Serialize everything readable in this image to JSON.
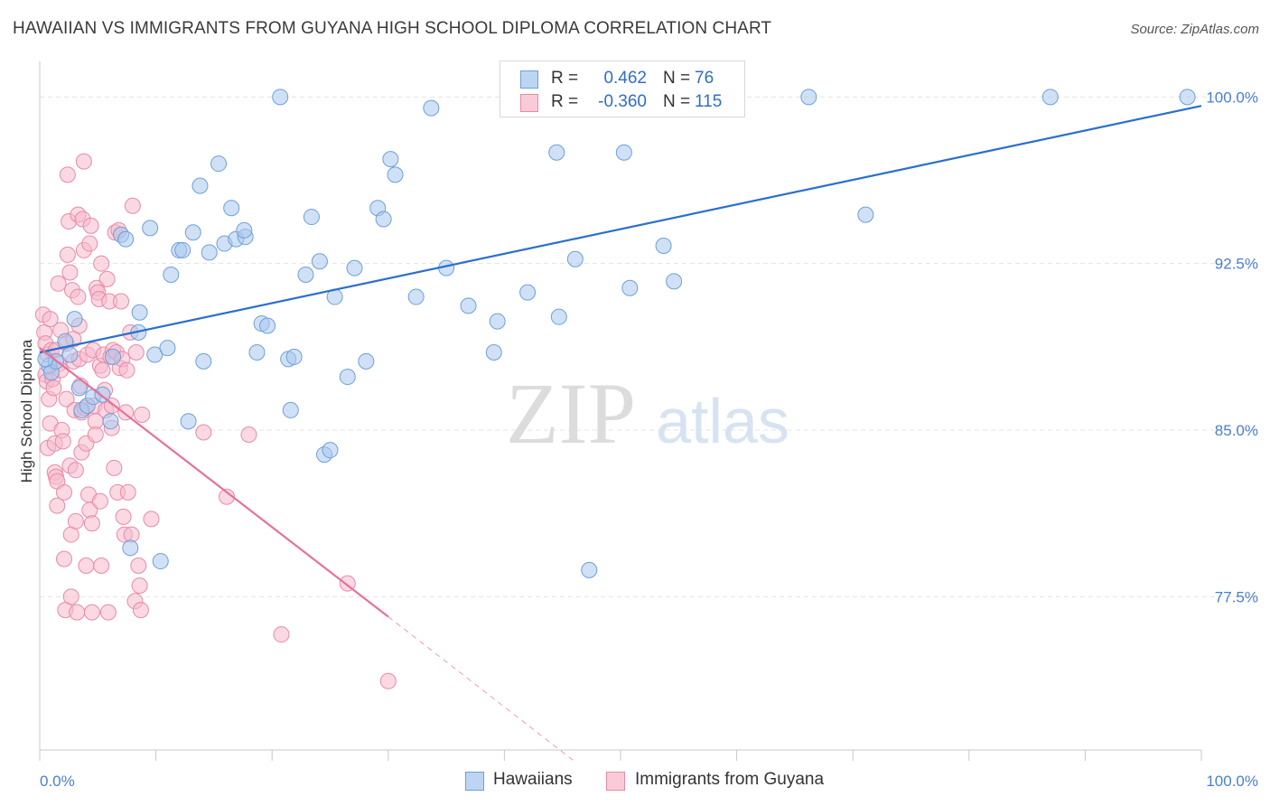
{
  "header": {
    "title": "HAWAIIAN VS IMMIGRANTS FROM GUYANA HIGH SCHOOL DIPLOMA CORRELATION CHART",
    "source": "Source: ZipAtlas.com"
  },
  "watermark": {
    "zip": "ZIP",
    "atlas": "atlas"
  },
  "colors": {
    "blue_fill": "#a9c8ee",
    "blue_stroke": "#6e9fd8",
    "blue_line": "#2a6fcc",
    "pink_fill": "#f5b9cc",
    "pink_stroke": "#e88aa8",
    "pink_line": "#e8709a",
    "axis_text": "#4a7fcf",
    "grid": "#e3e3e3"
  },
  "legend_top": {
    "rows": [
      {
        "r_label": "R =",
        "r_value": "0.462",
        "n_label": "N =",
        "n_value": "76"
      },
      {
        "r_label": "R =",
        "r_value": "-0.360",
        "n_label": "N =",
        "n_value": "115"
      }
    ]
  },
  "legend_bottom": {
    "items": [
      {
        "label": "Hawaiians"
      },
      {
        "label": "Immigrants from Guyana"
      }
    ]
  },
  "chart_data": {
    "type": "scatter",
    "title": "HAWAIIAN VS IMMIGRANTS FROM GUYANA HIGH SCHOOL DIPLOMA CORRELATION CHART",
    "xlabel": "",
    "ylabel": "High School Diploma",
    "xlim": [
      0,
      100
    ],
    "ylim": [
      70.6,
      101.6
    ],
    "x_tick_labels": [
      {
        "value": 0,
        "label": "0.0%"
      },
      {
        "value": 100,
        "label": "100.0%"
      }
    ],
    "y_tick_labels": [
      {
        "value": 100.0,
        "label": "100.0%"
      },
      {
        "value": 92.5,
        "label": "92.5%"
      },
      {
        "value": 85.0,
        "label": "85.0%"
      },
      {
        "value": 77.5,
        "label": "77.5%"
      }
    ],
    "grid": true,
    "legend_position": "top-center",
    "series": [
      {
        "name": "Hawaiians",
        "color": "#a9c8ee",
        "trend": {
          "x": [
            0,
            100
          ],
          "y": [
            88.5,
            99.6
          ],
          "style": "solid"
        },
        "points": [
          [
            0.8,
            87.9
          ],
          [
            1.0,
            87.6
          ],
          [
            1.4,
            88.1
          ],
          [
            2.2,
            89.0
          ],
          [
            2.6,
            88.4
          ],
          [
            3.0,
            90.0
          ],
          [
            3.4,
            86.9
          ],
          [
            3.6,
            85.9
          ],
          [
            4.1,
            86.1
          ],
          [
            4.6,
            86.5
          ],
          [
            5.4,
            86.6
          ],
          [
            6.1,
            85.4
          ],
          [
            6.3,
            88.3
          ],
          [
            7.0,
            93.8
          ],
          [
            7.4,
            93.6
          ],
          [
            7.8,
            79.7
          ],
          [
            8.5,
            89.4
          ],
          [
            8.6,
            90.3
          ],
          [
            9.5,
            94.1
          ],
          [
            9.9,
            88.4
          ],
          [
            10.4,
            79.1
          ],
          [
            11.0,
            88.7
          ],
          [
            11.3,
            92.0
          ],
          [
            12.0,
            93.1
          ],
          [
            12.3,
            93.1
          ],
          [
            12.8,
            85.4
          ],
          [
            13.2,
            93.9
          ],
          [
            13.8,
            96.0
          ],
          [
            14.1,
            88.1
          ],
          [
            14.6,
            93.0
          ],
          [
            15.4,
            97.0
          ],
          [
            15.9,
            93.4
          ],
          [
            16.5,
            95.0
          ],
          [
            16.9,
            93.6
          ],
          [
            17.7,
            93.7
          ],
          [
            17.6,
            94.0
          ],
          [
            18.7,
            88.5
          ],
          [
            19.1,
            89.8
          ],
          [
            19.6,
            89.7
          ],
          [
            20.7,
            100.0
          ],
          [
            21.4,
            88.2
          ],
          [
            21.6,
            85.9
          ],
          [
            21.9,
            88.3
          ],
          [
            22.9,
            92.0
          ],
          [
            23.4,
            94.6
          ],
          [
            24.1,
            92.6
          ],
          [
            24.5,
            83.9
          ],
          [
            25.0,
            84.1
          ],
          [
            25.4,
            91.0
          ],
          [
            26.5,
            87.4
          ],
          [
            27.1,
            92.3
          ],
          [
            28.1,
            88.1
          ],
          [
            29.1,
            95.0
          ],
          [
            29.6,
            94.5
          ],
          [
            30.2,
            97.2
          ],
          [
            30.6,
            96.5
          ],
          [
            32.4,
            91.0
          ],
          [
            33.7,
            99.5
          ],
          [
            35.0,
            92.3
          ],
          [
            36.9,
            90.6
          ],
          [
            39.4,
            89.9
          ],
          [
            39.1,
            88.5
          ],
          [
            42.0,
            91.2
          ],
          [
            44.5,
            97.5
          ],
          [
            44.7,
            90.1
          ],
          [
            46.1,
            92.7
          ],
          [
            47.3,
            78.7
          ],
          [
            50.3,
            97.5
          ],
          [
            50.8,
            91.4
          ],
          [
            53.7,
            93.3
          ],
          [
            54.6,
            91.7
          ],
          [
            66.2,
            100.0
          ],
          [
            71.1,
            94.7
          ],
          [
            87.0,
            100.0
          ],
          [
            98.8,
            100.0
          ],
          [
            0.5,
            88.2
          ]
        ]
      },
      {
        "name": "Immigrants from Guyana",
        "color": "#f5b9cc",
        "trend": {
          "x": [
            0,
            30
          ],
          "y": [
            88.7,
            76.6
          ],
          "style": "solid",
          "dashed_extension_to": [
            46,
            70.1
          ]
        },
        "points": [
          [
            0.3,
            90.2
          ],
          [
            0.4,
            89.4
          ],
          [
            0.5,
            88.9
          ],
          [
            0.5,
            87.5
          ],
          [
            0.6,
            87.2
          ],
          [
            0.7,
            88.4
          ],
          [
            0.7,
            84.2
          ],
          [
            0.8,
            86.4
          ],
          [
            0.9,
            85.3
          ],
          [
            0.9,
            90.0
          ],
          [
            1.0,
            88.6
          ],
          [
            1.1,
            87.3
          ],
          [
            1.2,
            86.9
          ],
          [
            1.3,
            84.4
          ],
          [
            1.3,
            83.1
          ],
          [
            1.4,
            82.9
          ],
          [
            1.4,
            88.6
          ],
          [
            1.5,
            82.7
          ],
          [
            1.5,
            81.6
          ],
          [
            1.6,
            91.6
          ],
          [
            1.7,
            88.0
          ],
          [
            1.8,
            89.5
          ],
          [
            1.8,
            87.7
          ],
          [
            1.9,
            85.0
          ],
          [
            2.0,
            84.5
          ],
          [
            2.1,
            82.2
          ],
          [
            2.1,
            79.2
          ],
          [
            2.2,
            76.9
          ],
          [
            2.3,
            88.9
          ],
          [
            2.3,
            86.4
          ],
          [
            2.4,
            96.5
          ],
          [
            2.4,
            92.9
          ],
          [
            2.5,
            94.4
          ],
          [
            2.6,
            92.1
          ],
          [
            2.6,
            83.4
          ],
          [
            2.7,
            80.3
          ],
          [
            2.7,
            77.5
          ],
          [
            2.8,
            91.3
          ],
          [
            2.9,
            89.1
          ],
          [
            2.9,
            88.1
          ],
          [
            3.0,
            85.9
          ],
          [
            3.1,
            83.2
          ],
          [
            3.1,
            80.9
          ],
          [
            3.2,
            76.8
          ],
          [
            3.3,
            94.7
          ],
          [
            3.3,
            91.0
          ],
          [
            3.4,
            89.7
          ],
          [
            3.4,
            88.2
          ],
          [
            3.5,
            87.0
          ],
          [
            3.6,
            85.8
          ],
          [
            3.6,
            84.0
          ],
          [
            3.7,
            94.5
          ],
          [
            3.8,
            97.1
          ],
          [
            3.8,
            93.1
          ],
          [
            3.9,
            86.0
          ],
          [
            4.0,
            84.4
          ],
          [
            4.0,
            78.9
          ],
          [
            4.1,
            88.4
          ],
          [
            4.2,
            82.1
          ],
          [
            4.3,
            81.4
          ],
          [
            4.3,
            93.4
          ],
          [
            4.4,
            94.2
          ],
          [
            4.5,
            80.8
          ],
          [
            4.5,
            76.8
          ],
          [
            4.6,
            88.6
          ],
          [
            4.7,
            86.1
          ],
          [
            4.8,
            85.4
          ],
          [
            4.8,
            84.8
          ],
          [
            4.9,
            91.4
          ],
          [
            5.0,
            91.2
          ],
          [
            5.1,
            90.9
          ],
          [
            5.2,
            87.9
          ],
          [
            5.2,
            81.8
          ],
          [
            5.3,
            78.9
          ],
          [
            5.3,
            92.5
          ],
          [
            5.4,
            87.7
          ],
          [
            5.5,
            88.4
          ],
          [
            5.6,
            86.8
          ],
          [
            5.7,
            85.9
          ],
          [
            5.8,
            91.8
          ],
          [
            5.9,
            76.8
          ],
          [
            6.0,
            90.8
          ],
          [
            6.1,
            88.3
          ],
          [
            6.2,
            86.1
          ],
          [
            6.2,
            85.1
          ],
          [
            6.3,
            88.6
          ],
          [
            6.4,
            83.3
          ],
          [
            6.5,
            93.9
          ],
          [
            6.6,
            88.5
          ],
          [
            6.7,
            82.2
          ],
          [
            6.8,
            94.0
          ],
          [
            6.9,
            87.8
          ],
          [
            7.0,
            90.8
          ],
          [
            7.1,
            88.2
          ],
          [
            7.2,
            81.1
          ],
          [
            7.3,
            80.3
          ],
          [
            7.4,
            85.8
          ],
          [
            7.5,
            87.7
          ],
          [
            7.6,
            82.2
          ],
          [
            7.8,
            89.4
          ],
          [
            7.9,
            80.3
          ],
          [
            8.0,
            95.1
          ],
          [
            8.2,
            77.3
          ],
          [
            8.3,
            88.5
          ],
          [
            8.5,
            78.9
          ],
          [
            8.6,
            78.0
          ],
          [
            8.7,
            76.9
          ],
          [
            8.8,
            85.7
          ],
          [
            9.6,
            81.0
          ],
          [
            14.1,
            84.9
          ],
          [
            16.1,
            82.0
          ],
          [
            18.0,
            84.8
          ],
          [
            20.8,
            75.8
          ],
          [
            26.5,
            78.1
          ],
          [
            30.0,
            73.7
          ]
        ]
      }
    ]
  }
}
